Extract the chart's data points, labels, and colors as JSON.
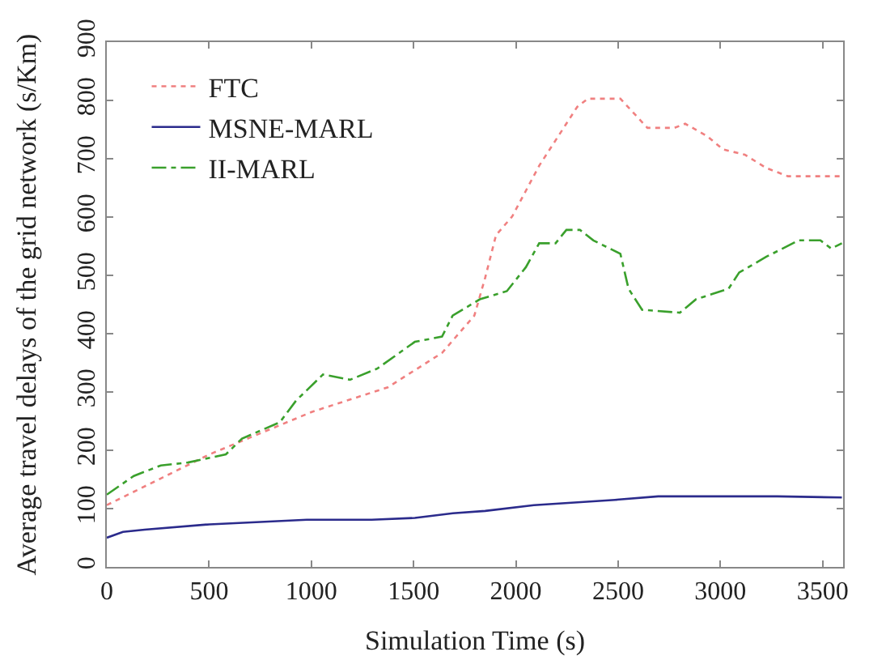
{
  "chart_data": {
    "type": "line",
    "xlabel": "Simulation Time (s)",
    "ylabel": "Average travel delays of the grid network (s/Km)",
    "xlim": [
      0,
      3600
    ],
    "xticks": [
      0,
      500,
      1000,
      1500,
      2000,
      2500,
      3000,
      3500
    ],
    "ylim": [
      0,
      900
    ],
    "yticks": [
      0,
      100,
      200,
      300,
      400,
      500,
      600,
      700,
      800,
      900
    ],
    "grid": false,
    "legend": "top left",
    "marker": "none",
    "series": [
      {
        "name": "FTC",
        "color": "#f08080",
        "line_style": "dotted",
        "x": [
          0,
          502,
          1004,
          1374,
          1639,
          1797,
          1850,
          1903,
          1982,
          2114,
          2300,
          2352,
          2511,
          2643,
          2775,
          2828,
          2934,
          3013,
          3119,
          3225,
          3330,
          3594
        ],
        "values": [
          106,
          193,
          266,
          308,
          367,
          431,
          496,
          569,
          601,
          688,
          789,
          803,
          803,
          753,
          753,
          760,
          739,
          716,
          707,
          684,
          670,
          670
        ]
      },
      {
        "name": "MSNE-MARL",
        "color": "#2b2b8c",
        "line_style": "solid",
        "x": [
          0,
          79,
          185,
          502,
          978,
          1295,
          1506,
          1692,
          1850,
          2088,
          2485,
          2696,
          3278,
          3594
        ],
        "values": [
          50,
          60,
          64,
          73,
          81,
          81,
          84,
          92,
          96,
          106,
          115,
          121,
          121,
          119
        ]
      },
      {
        "name": "II-MARL",
        "color": "#3aa02c",
        "line_style": "dashed",
        "x": [
          0,
          132,
          264,
          396,
          582,
          661,
          846,
          925,
          1057,
          1189,
          1322,
          1506,
          1639,
          1691,
          1824,
          1956,
          2049,
          2114,
          2194,
          2247,
          2313,
          2379,
          2511,
          2551,
          2617,
          2802,
          2881,
          3040,
          3092,
          3225,
          3383,
          3489,
          3542,
          3594
        ],
        "values": [
          124,
          156,
          174,
          179,
          193,
          220,
          248,
          285,
          330,
          321,
          340,
          386,
          395,
          431,
          459,
          473,
          514,
          555,
          555,
          578,
          578,
          560,
          537,
          477,
          441,
          436,
          459,
          477,
          505,
          532,
          560,
          560,
          546,
          555
        ]
      }
    ]
  }
}
